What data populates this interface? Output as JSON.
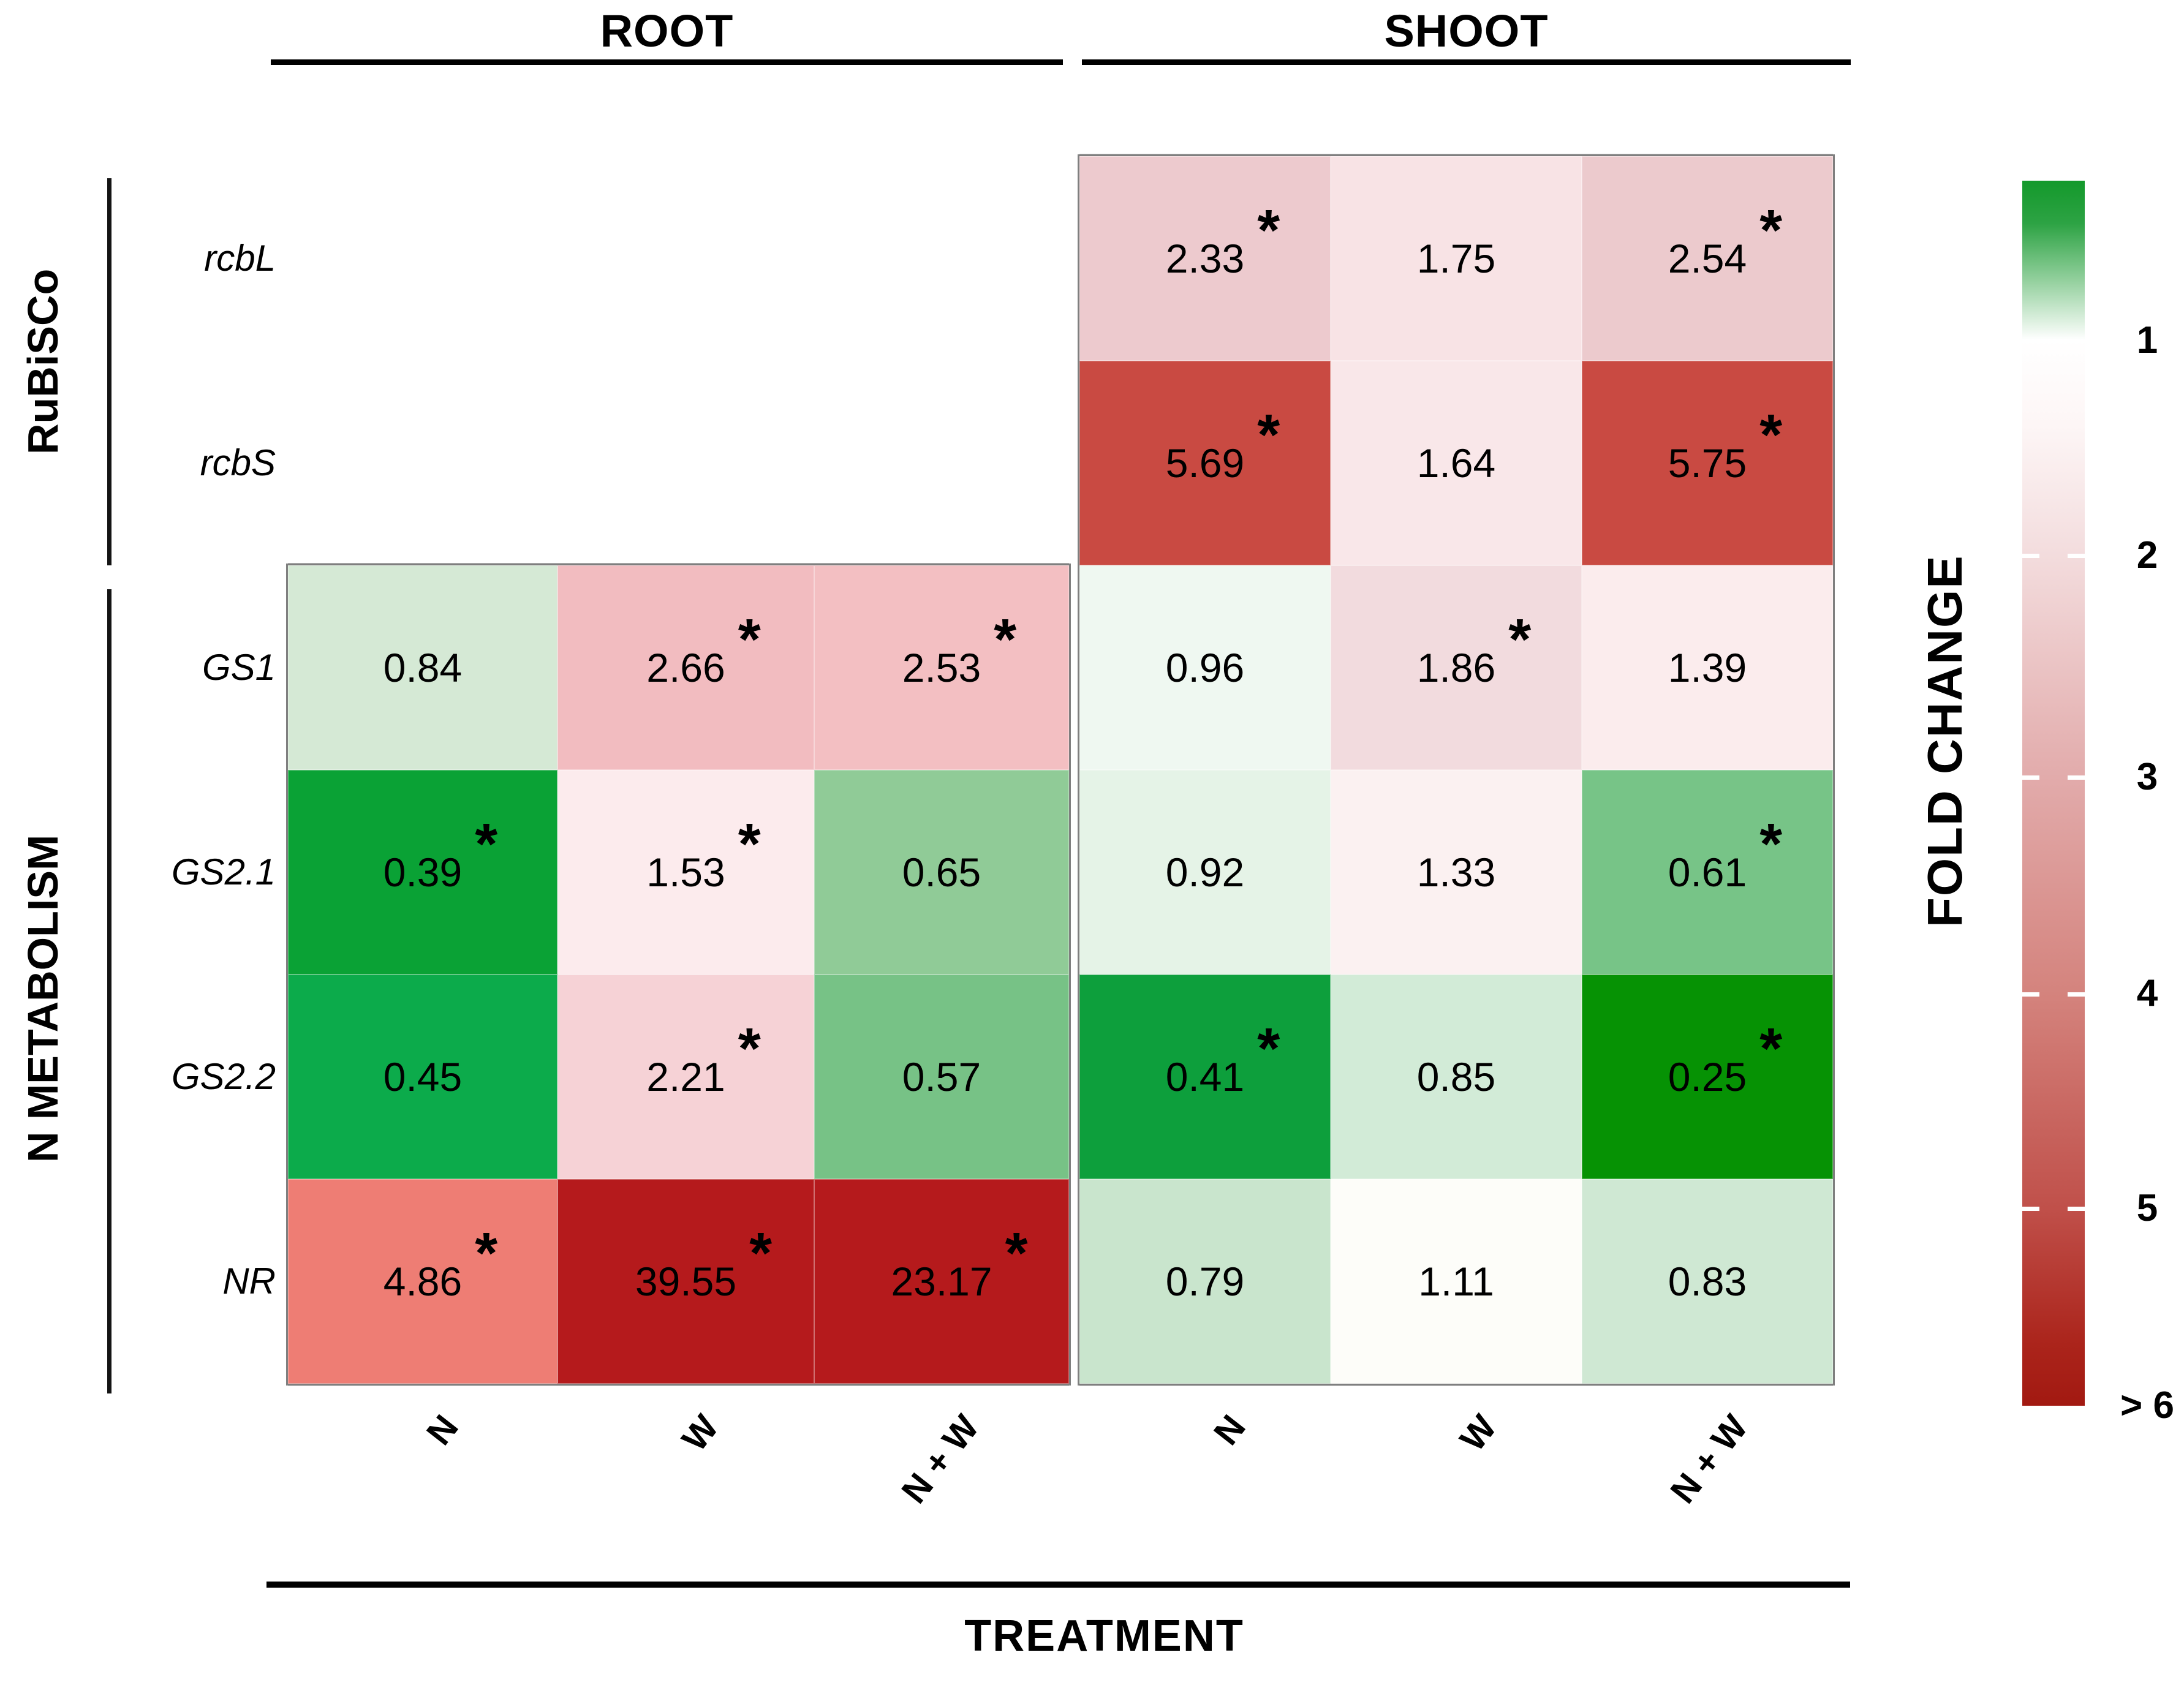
{
  "header": {
    "root": "ROOT",
    "shoot": "SHOOT"
  },
  "axis": {
    "title": "TREATMENT",
    "columns": [
      "N",
      "W",
      "N + W"
    ]
  },
  "groups": [
    {
      "label": "RuBiSCo"
    },
    {
      "label": "N METABOLISM"
    }
  ],
  "legend": {
    "title": "FOLD CHANGE",
    "ticks": [
      "1",
      "2",
      "3",
      "4",
      "5",
      "> 6"
    ],
    "tick_marks_pct": [
      30.6,
      48.7,
      66.4,
      83.9
    ],
    "top_color": "#13992b",
    "mid_color": "#ffffff",
    "bottom_color": "#a21911"
  },
  "chart_data": {
    "type": "heatmap",
    "title": "Gene expression fold change in root and shoot by treatment",
    "columns": [
      "N",
      "W",
      "N + W"
    ],
    "columns_short": [
      "N",
      "W",
      "N+W"
    ],
    "genes": [
      "rcbL",
      "rcbS",
      "GS1",
      "GS2.1",
      "GS2.2",
      "NR"
    ],
    "gene_groups": {
      "RuBiSCo": [
        "rcbL",
        "rcbS"
      ],
      "N METABOLISM": [
        "GS1",
        "GS2.1",
        "GS2.2",
        "NR"
      ]
    },
    "scale": {
      "label": "FOLD CHANGE",
      "min": 1,
      "max_label": "> 6",
      "green_is_below_1": true,
      "red_is_above_1": true
    },
    "significance_marker": "*",
    "panels": [
      {
        "name": "ROOT",
        "rows": [
          {
            "gene": "GS1",
            "values": [
              0.84,
              2.66,
              2.53
            ],
            "sig": [
              false,
              true,
              true
            ],
            "colors": [
              "#d5e9d5",
              "#f2bcc0",
              "#f3bfc2"
            ]
          },
          {
            "gene": "GS2.1",
            "values": [
              0.39,
              1.53,
              0.65
            ],
            "sig": [
              true,
              true,
              false
            ],
            "colors": [
              "#0aa235",
              "#fcebed",
              "#90cb97"
            ]
          },
          {
            "gene": "GS2.2",
            "values": [
              0.45,
              2.21,
              0.57
            ],
            "sig": [
              false,
              true,
              false
            ],
            "colors": [
              "#0cab4b",
              "#f6d2d6",
              "#77c286"
            ]
          },
          {
            "gene": "NR",
            "values": [
              4.86,
              39.55,
              23.17
            ],
            "sig": [
              true,
              true,
              true
            ],
            "colors": [
              "#ee7d74",
              "#b51a1c",
              "#b51a1c"
            ]
          }
        ]
      },
      {
        "name": "SHOOT",
        "rows": [
          {
            "gene": "rcbL",
            "values": [
              2.33,
              1.75,
              2.54
            ],
            "sig": [
              true,
              false,
              true
            ],
            "colors": [
              "#edcace",
              "#f8e3e5",
              "#eccacd"
            ]
          },
          {
            "gene": "rcbS",
            "values": [
              5.69,
              1.64,
              5.75
            ],
            "sig": [
              true,
              false,
              true
            ],
            "colors": [
              "#c94a42",
              "#f9e7e9",
              "#c94a42"
            ]
          },
          {
            "gene": "GS1",
            "values": [
              0.96,
              1.86,
              1.39
            ],
            "sig": [
              false,
              true,
              false
            ],
            "colors": [
              "#eff8f1",
              "#f2dbde",
              "#fbeced"
            ]
          },
          {
            "gene": "GS2.1",
            "values": [
              0.92,
              1.33,
              0.61
            ],
            "sig": [
              false,
              false,
              true
            ],
            "colors": [
              "#e5f3e7",
              "#fbf1f1",
              "#77c487"
            ]
          },
          {
            "gene": "GS2.2",
            "values": [
              0.41,
              0.85,
              0.25
            ],
            "sig": [
              true,
              false,
              true
            ],
            "colors": [
              "#0d9f3c",
              "#d2ebd7",
              "#069204"
            ]
          },
          {
            "gene": "NR",
            "values": [
              0.79,
              1.11,
              0.83
            ],
            "sig": [
              false,
              false,
              false
            ],
            "colors": [
              "#c9e5cd",
              "#fdfdf9",
              "#cfe8d3"
            ]
          }
        ]
      }
    ]
  }
}
